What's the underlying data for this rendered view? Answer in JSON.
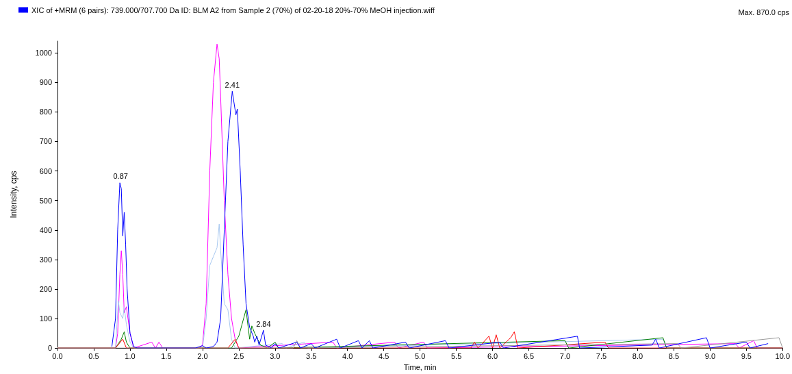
{
  "chart_data": {
    "type": "line",
    "xlabel": "Time, min",
    "ylabel": "Intensity, cps",
    "legend": "top left",
    "grid": false,
    "marker": "none",
    "line_style": "solid",
    "xlim": [
      0,
      10
    ],
    "ylim": [
      0,
      1040
    ],
    "xticks": [
      {
        "value": 0,
        "label": "0.0"
      },
      0.5,
      {
        "value": 1,
        "label": "1.0"
      },
      1.5,
      {
        "value": 2,
        "label": "2.0"
      },
      2.5,
      {
        "value": 3,
        "label": "3.0"
      },
      3.5,
      {
        "value": 4,
        "label": "4.0"
      },
      4.5,
      {
        "value": 5,
        "label": "5.0"
      },
      5.5,
      {
        "value": 6,
        "label": "6.0"
      },
      6.5,
      {
        "value": 7,
        "label": "7.0"
      },
      7.5,
      {
        "value": 8,
        "label": "8.0"
      },
      8.5,
      {
        "value": 9,
        "label": "9.0"
      },
      9.5,
      {
        "value": 10,
        "label": "10.0"
      }
    ],
    "yticks": [
      0,
      100,
      200,
      300,
      400,
      500,
      600,
      700,
      800,
      900,
      1000
    ],
    "annotations": [
      "Max. 870.0 cps",
      {
        "text": "0.87",
        "x": 0.87,
        "y": 560
      },
      {
        "text": "2.41",
        "x": 2.41,
        "y": 870
      },
      {
        "text": "2.84",
        "x": 2.84,
        "y": 60
      }
    ],
    "series": [
      {
        "color": "#ff00ff",
        "x": [
          0,
          0.8,
          0.83,
          0.86,
          0.88,
          0.9,
          0.92,
          0.95,
          1.0,
          1.05,
          1.3,
          1.35,
          1.4,
          1.45,
          1.95,
          2.0,
          2.05,
          2.1,
          2.15,
          2.2,
          2.23,
          2.25,
          2.3,
          2.35,
          2.4,
          2.45,
          2.5,
          3.8,
          3.85,
          4.65,
          4.7,
          5.05,
          5.1,
          9.35,
          9.4,
          9.6,
          9.65,
          10
        ],
        "values": [
          0,
          0,
          50,
          250,
          330,
          250,
          120,
          140,
          50,
          0,
          20,
          0,
          20,
          0,
          0,
          10,
          150,
          600,
          900,
          1030,
          980,
          850,
          500,
          250,
          100,
          30,
          0,
          20,
          0,
          20,
          0,
          20,
          0,
          15,
          0,
          25,
          0,
          0
        ]
      },
      {
        "color": "#a8c8f0",
        "x": [
          0,
          0.8,
          0.84,
          0.86,
          0.9,
          0.92,
          0.95,
          1.0,
          1.05,
          2.0,
          2.05,
          2.1,
          2.15,
          2.2,
          2.23,
          2.25,
          2.3,
          2.35,
          2.4,
          2.45,
          3.1,
          3.15,
          3.4,
          3.45,
          8.35,
          8.4,
          10
        ],
        "values": [
          0,
          0,
          160,
          120,
          100,
          140,
          80,
          20,
          0,
          0,
          100,
          280,
          310,
          340,
          420,
          330,
          150,
          130,
          30,
          0,
          15,
          0,
          20,
          0,
          30,
          0,
          0
        ]
      },
      {
        "color": "#008000",
        "x": [
          0,
          0.8,
          0.88,
          0.92,
          0.95,
          1.0,
          2.4,
          2.5,
          2.6,
          2.65,
          2.68,
          2.72,
          2.8,
          2.9,
          3.0,
          3.05,
          7.0,
          7.05,
          8.35,
          8.4,
          10
        ],
        "values": [
          0,
          0,
          30,
          55,
          20,
          0,
          0,
          40,
          130,
          30,
          75,
          50,
          10,
          0,
          20,
          0,
          25,
          0,
          35,
          0,
          0
        ]
      },
      {
        "color": "#ff0000",
        "x": [
          0,
          0.8,
          0.9,
          0.95,
          2.35,
          2.45,
          2.5,
          5.7,
          5.75,
          5.8,
          5.95,
          6.0,
          6.05,
          6.1,
          6.25,
          6.3,
          6.35,
          7.55,
          7.6,
          10
        ],
        "values": [
          0,
          0,
          30,
          0,
          0,
          30,
          0,
          0,
          20,
          0,
          40,
          0,
          45,
          0,
          35,
          55,
          0,
          20,
          0,
          0
        ]
      },
      {
        "color": "#999999",
        "x": [
          0,
          3.25,
          3.3,
          3.35,
          8.55,
          8.6,
          9.95,
          10
        ],
        "values": [
          0,
          0,
          25,
          0,
          15,
          0,
          35,
          0
        ]
      },
      {
        "name": "XIC of +MRM (6 pairs): 739.000/707.700 Da ID: BLM A2 from Sample 2 (70%) of 02-20-18 20%-70% MeOH injection.wiff",
        "color": "#0000ff",
        "x": [
          0.75,
          0.8,
          0.83,
          0.86,
          0.88,
          0.9,
          0.92,
          0.94,
          0.96,
          1.0,
          1.05,
          1.1,
          1.9,
          2.0,
          2.05,
          2.15,
          2.2,
          2.25,
          2.3,
          2.35,
          2.41,
          2.46,
          2.48,
          2.52,
          2.56,
          2.6,
          2.65,
          2.7,
          2.72,
          2.75,
          2.78,
          2.84,
          2.87,
          2.95,
          3.0,
          3.05,
          3.3,
          3.35,
          3.5,
          3.55,
          3.85,
          3.9,
          4.15,
          4.2,
          4.3,
          4.35,
          4.8,
          4.85,
          5.35,
          5.4,
          6.1,
          6.15,
          7.17,
          7.2,
          8.2,
          8.25,
          8.3,
          8.95,
          9.0,
          9.5,
          9.55,
          9.8
        ],
        "values": [
          5,
          100,
          400,
          560,
          540,
          380,
          460,
          350,
          200,
          50,
          5,
          0,
          0,
          8,
          0,
          5,
          20,
          100,
          400,
          700,
          870,
          790,
          810,
          600,
          350,
          150,
          70,
          40,
          20,
          40,
          10,
          60,
          10,
          0,
          15,
          0,
          20,
          0,
          15,
          0,
          30,
          0,
          25,
          0,
          25,
          0,
          20,
          0,
          25,
          0,
          20,
          0,
          40,
          0,
          10,
          30,
          0,
          35,
          0,
          20,
          0,
          15
        ]
      }
    ]
  }
}
